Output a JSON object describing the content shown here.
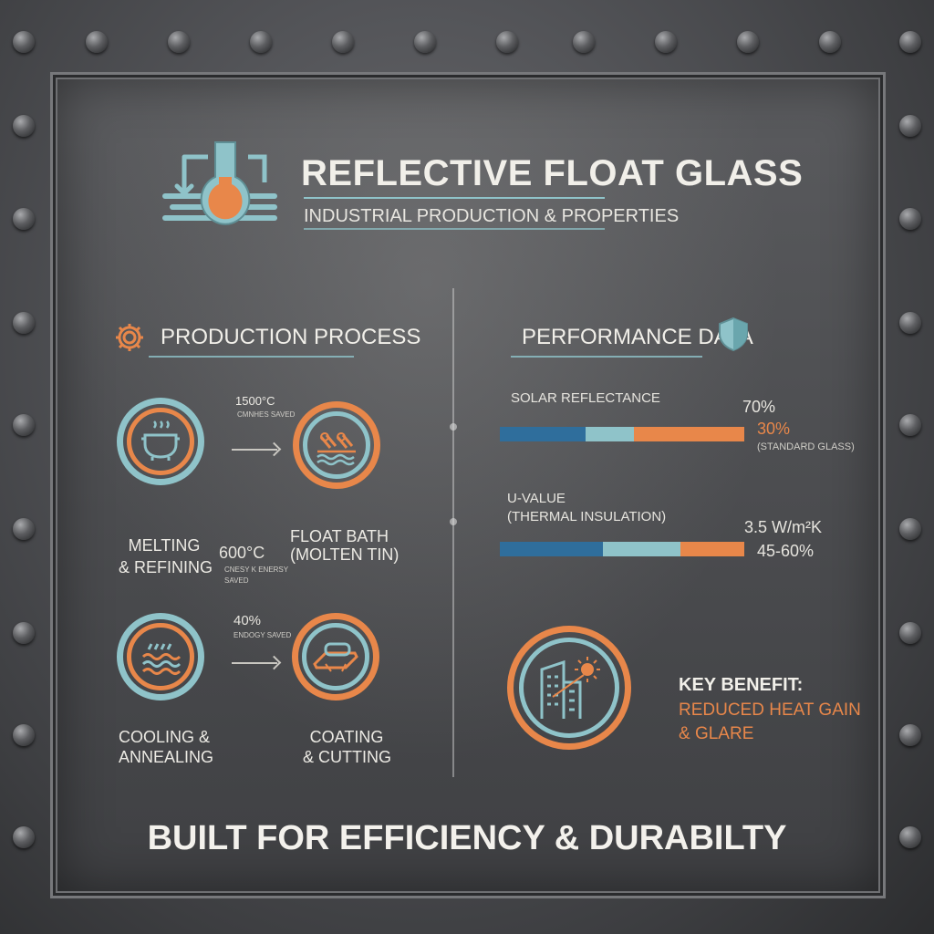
{
  "header": {
    "title": "REFLECTIVE FLOAT GLASS",
    "subtitle": "INDUSTRIAL PRODUCTION & PROPERTIES",
    "icon": "flask-icon"
  },
  "production": {
    "title": "PRODUCTION PROCESS",
    "icon": "gear-icon",
    "steps": [
      {
        "label_line1": "MELTING",
        "label_line2": "& REFINING",
        "icon": "crucible-icon"
      },
      {
        "label_line1": "FLOAT BATH",
        "label_line2": "(MOLTEN TIN)",
        "icon": "float-bath-icon"
      },
      {
        "label_line1": "COOLING &",
        "label_line2": "ANNEALING",
        "icon": "cooling-icon"
      },
      {
        "label_line1": "COATING",
        "label_line2": "& CUTTING",
        "icon": "coating-icon"
      }
    ],
    "notes": {
      "temp1": "1500°C",
      "temp1_sub": "CMNHES SAVED",
      "temp2": "600°C",
      "temp2_sub1": "CNESY K ENERSY",
      "temp2_sub2": "SAVED",
      "saving": "40%",
      "saving_sub": "ENDOGY SAVED"
    }
  },
  "performance": {
    "title": "PERFORMANCE DATA",
    "icon": "shield-icon",
    "solar": {
      "label": "SOLAR REFLECTANCE",
      "value": "70%",
      "compare": "30%",
      "compare_note": "(STANDARD GLASS)",
      "segments": [
        0.35,
        0.2,
        0.45
      ]
    },
    "uvalue": {
      "label_line1": "U-VALUE",
      "label_line2": "(THERMAL INSULATION)",
      "value": "3.5 W/m²K",
      "range": "45-60%",
      "segments": [
        0.42,
        0.32,
        0.26
      ]
    },
    "benefit": {
      "icon": "building-sun-icon",
      "heading": "KEY BENEFIT:",
      "line1": "REDUCED HEAT GAIN",
      "line2": "& GLARE"
    }
  },
  "footer": "BUILT FOR EFFICIENCY & DURABILTY",
  "colors": {
    "teal": "#8fc3c9",
    "orange": "#e8874a",
    "blue": "#2f6e9c"
  }
}
